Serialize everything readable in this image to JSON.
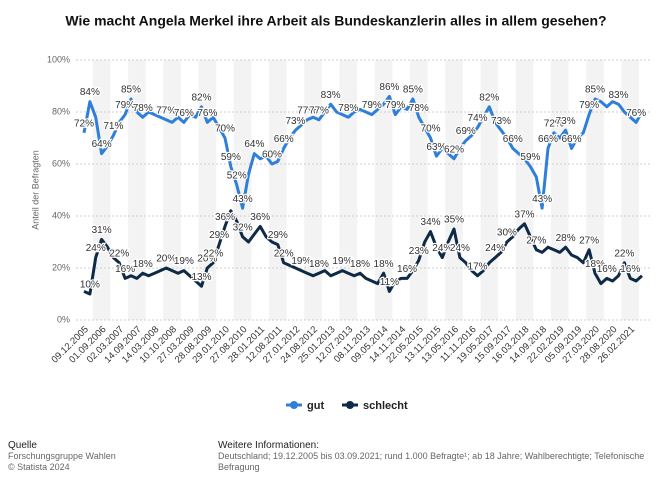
{
  "chart_data": {
    "type": "line",
    "title": "Wie macht Angela Merkel ihre Arbeit als Bundeskanzlerin alles in allem gesehen?",
    "y_label": "Anteil der Befragten",
    "categories": [
      "09.12.2005",
      null,
      null,
      "01.09.2006",
      null,
      null,
      "02.03.2007",
      null,
      null,
      "14.09.2007",
      null,
      null,
      "14.03.2008",
      null,
      null,
      "10.10.2008",
      null,
      null,
      "27.03.2009",
      null,
      null,
      "28.08.2009",
      null,
      null,
      "29.01.2010",
      null,
      null,
      "27.08.2010",
      null,
      null,
      "28.01.2011",
      null,
      null,
      "12.08.2011",
      null,
      null,
      "27.01.2012",
      null,
      null,
      "24.08.2012",
      null,
      null,
      "25.01.2013",
      null,
      null,
      "12.07.2013",
      null,
      null,
      "08.11.2013",
      null,
      null,
      "09.05.2014",
      null,
      null,
      "14.11.2014",
      null,
      null,
      "22.05.2015",
      null,
      null,
      "13.11.2015",
      null,
      null,
      "13.05.2016",
      null,
      null,
      "11.11.2016",
      null,
      null,
      "19.05.2017",
      null,
      null,
      "15.09.2017",
      null,
      null,
      "16.03.2018",
      null,
      null,
      "14.09.2018",
      null,
      null,
      "22.02.2019",
      null,
      null,
      "05.09.2019",
      null,
      null,
      "27.03.2020",
      null,
      null,
      "28.08.2020",
      null,
      null,
      "26.02.2021",
      null,
      null
    ],
    "series": [
      {
        "name": "gut",
        "color": "#2f7fd8",
        "values": [
          72,
          84,
          78,
          64,
          67,
          71,
          76,
          79,
          85,
          80,
          78,
          80,
          79,
          78,
          77,
          76,
          78,
          76,
          79,
          78,
          82,
          76,
          78,
          74,
          70,
          59,
          52,
          43,
          56,
          64,
          62,
          63,
          60,
          61,
          66,
          70,
          73,
          75,
          77,
          78,
          77,
          80,
          83,
          80,
          79,
          78,
          80,
          81,
          80,
          79,
          81,
          83,
          86,
          79,
          82,
          81,
          85,
          78,
          74,
          70,
          63,
          66,
          64,
          62,
          66,
          69,
          71,
          74,
          78,
          82,
          76,
          73,
          70,
          66,
          64,
          62,
          59,
          55,
          43,
          66,
          72,
          70,
          73,
          66,
          70,
          72,
          79,
          85,
          84,
          82,
          84,
          83,
          80,
          78,
          76,
          80
        ],
        "value_labels": [
          "72%",
          "84%",
          null,
          "64%",
          null,
          "71%",
          null,
          "79%",
          "85%",
          null,
          "78%",
          null,
          null,
          null,
          "77%",
          null,
          null,
          "76%",
          null,
          null,
          "82%",
          "76%",
          null,
          null,
          "70%",
          "59%",
          "52%",
          "43%",
          null,
          "64%",
          null,
          null,
          "60%",
          null,
          "66%",
          null,
          "73%",
          null,
          "77%",
          null,
          "77%",
          null,
          "83%",
          null,
          null,
          "78%",
          null,
          null,
          null,
          "79%",
          null,
          null,
          "86%",
          "79%",
          null,
          null,
          "85%",
          "78%",
          null,
          "70%",
          "63%",
          null,
          null,
          "62%",
          null,
          "69%",
          null,
          "74%",
          null,
          "82%",
          null,
          "73%",
          null,
          "66%",
          null,
          null,
          "59%",
          null,
          "43%",
          "66%",
          "72%",
          null,
          "73%",
          "66%",
          null,
          null,
          "79%",
          "85%",
          null,
          null,
          null,
          "83%",
          null,
          null,
          "76%",
          null
        ]
      },
      {
        "name": "schlecht",
        "color": "#0e2a47",
        "values": [
          11,
          10,
          24,
          31,
          28,
          24,
          22,
          16,
          17,
          16,
          18,
          17,
          18,
          19,
          20,
          19,
          18,
          19,
          17,
          15,
          13,
          20,
          22,
          29,
          36,
          42,
          38,
          32,
          30,
          33,
          36,
          32,
          30,
          29,
          22,
          21,
          20,
          19,
          18,
          17,
          18,
          19,
          17,
          18,
          19,
          18,
          17,
          18,
          16,
          15,
          14,
          18,
          11,
          15,
          16,
          16,
          19,
          23,
          30,
          34,
          28,
          24,
          30,
          35,
          24,
          22,
          19,
          17,
          19,
          22,
          24,
          26,
          30,
          32,
          35,
          37,
          32,
          27,
          26,
          28,
          27,
          26,
          28,
          25,
          24,
          22,
          27,
          18,
          14,
          16,
          15,
          17,
          22,
          16,
          15,
          17
        ],
        "value_labels": [
          null,
          "10%",
          "24%",
          "31%",
          null,
          null,
          "22%",
          "16%",
          null,
          null,
          "18%",
          null,
          null,
          null,
          "20%",
          null,
          null,
          "19%",
          null,
          null,
          "13%",
          "20%",
          "22%",
          "29%",
          "36%",
          null,
          null,
          "32%",
          null,
          null,
          "36%",
          null,
          null,
          "29%",
          "22%",
          null,
          null,
          "19%",
          null,
          null,
          "18%",
          null,
          null,
          null,
          "19%",
          null,
          null,
          "18%",
          null,
          null,
          null,
          "18%",
          "11%",
          null,
          null,
          "16%",
          null,
          "23%",
          null,
          "34%",
          null,
          "24%",
          null,
          "35%",
          "24%",
          null,
          null,
          "17%",
          null,
          null,
          "24%",
          null,
          "30%",
          null,
          null,
          "37%",
          null,
          "27%",
          null,
          null,
          null,
          null,
          "28%",
          null,
          null,
          null,
          "27%",
          "18%",
          null,
          "16%",
          null,
          null,
          "22%",
          "16%",
          null,
          null
        ]
      }
    ],
    "ylim": [
      0,
      100
    ],
    "yticks": [
      {
        "value": 0,
        "label": "0%"
      },
      {
        "value": 20,
        "label": "20%"
      },
      {
        "value": 40,
        "label": "40%"
      },
      {
        "value": 60,
        "label": "60%"
      },
      {
        "value": 80,
        "label": "80%"
      },
      {
        "value": 100,
        "label": "100%"
      }
    ],
    "grid": true,
    "legend": "bottom"
  },
  "footer": {
    "source_title": "Quelle",
    "source": "Forschungsgruppe Wahlen",
    "copyright": "© Statista 2024",
    "info_title": "Weitere Informationen:",
    "info": "Deutschland; 19.12.2005 bis 03.09.2021; rund 1.000 Befragte¹; ab 18 Jahre; Wahlberechtigte; Telefonische Befragung"
  }
}
